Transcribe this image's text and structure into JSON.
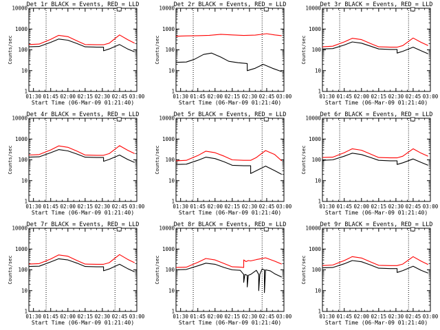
{
  "figure": {
    "background": "#ffffff",
    "colors": {
      "events": "#000000",
      "lld": "#ff0000",
      "axes": "#000000"
    },
    "legend_box_glyph": "small-square"
  },
  "chart_data": [
    {
      "type": "line",
      "title": "Det 1r BLACK = Events, RED = LLD",
      "xlabel": "Start Time (06-Mar-09 01:21:40)",
      "ylabel": "Counts/sec",
      "yscale": "log",
      "ylim": [
        1,
        10000
      ],
      "xtick_labels": [
        "01:30",
        "01:45",
        "02:00",
        "02:15",
        "02:30",
        "02:45",
        "03:00"
      ],
      "xlim": [
        "01:26",
        "03:00"
      ],
      "ytick_labels": [
        "1",
        "10",
        "100",
        "1000",
        "10000"
      ],
      "vlines": [
        "01:41",
        "02:41"
      ],
      "series": [
        {
          "name": "Events",
          "color": "#000000",
          "x": [
            "01:26",
            "01:35",
            "01:45",
            "01:52",
            "02:00",
            "02:08",
            "02:15",
            "02:25",
            "02:31",
            "02:31",
            "02:36",
            "02:45",
            "02:52",
            "02:58"
          ],
          "y": [
            140,
            145,
            230,
            330,
            290,
            200,
            140,
            135,
            135,
            90,
            110,
            180,
            110,
            80
          ]
        },
        {
          "name": "LLD",
          "color": "#ff0000",
          "x": [
            "01:26",
            "01:35",
            "01:45",
            "01:52",
            "02:00",
            "02:08",
            "02:15",
            "02:25",
            "02:31",
            "02:36",
            "02:45",
            "02:52",
            "02:58"
          ],
          "y": [
            180,
            190,
            320,
            500,
            430,
            270,
            180,
            175,
            175,
            210,
            520,
            310,
            210
          ]
        }
      ]
    },
    {
      "type": "line",
      "title": "Det 2r BLACK = Events, RED = LLD",
      "xlabel": "Start Time (06-Mar-09 01:21:40)",
      "ylabel": "Counts/sec",
      "yscale": "log",
      "ylim": [
        1,
        10000
      ],
      "xtick_labels": [
        "01:30",
        "01:45",
        "02:00",
        "02:15",
        "02:30",
        "02:45",
        "03:00"
      ],
      "xlim": [
        "01:26",
        "03:00"
      ],
      "ytick_labels": [
        "1",
        "10",
        "100",
        "1000",
        "10000"
      ],
      "vlines": [
        "01:41",
        "02:41"
      ],
      "series": [
        {
          "name": "Events",
          "color": "#000000",
          "x": [
            "01:26",
            "01:35",
            "01:42",
            "01:50",
            "01:57",
            "02:05",
            "02:12",
            "02:20",
            "02:28",
            "02:28",
            "02:35",
            "02:42",
            "02:50",
            "02:58"
          ],
          "y": [
            25,
            26,
            35,
            60,
            70,
            45,
            28,
            24,
            22,
            10,
            13,
            20,
            13,
            9
          ]
        },
        {
          "name": "LLD",
          "color": "#ff0000",
          "x": [
            "01:26",
            "01:35",
            "01:45",
            "01:55",
            "02:05",
            "02:15",
            "02:25",
            "02:35",
            "02:45",
            "02:52",
            "02:58"
          ],
          "y": [
            450,
            470,
            480,
            500,
            560,
            520,
            490,
            510,
            600,
            520,
            480
          ]
        }
      ]
    },
    {
      "type": "line",
      "title": "Det 3r BLACK = Events, RED = LLD",
      "xlabel": "Start Time (06-Mar-09 01:21:40)",
      "ylabel": "Counts/sec",
      "yscale": "log",
      "ylim": [
        1,
        10000
      ],
      "xtick_labels": [
        "01:30",
        "01:45",
        "02:00",
        "02:15",
        "02:30",
        "02:45",
        "03:00"
      ],
      "xlim": [
        "01:26",
        "03:00"
      ],
      "ytick_labels": [
        "1",
        "10",
        "100",
        "1000",
        "10000"
      ],
      "vlines": [
        "01:41",
        "02:41"
      ],
      "series": [
        {
          "name": "Events",
          "color": "#000000",
          "x": [
            "01:26",
            "01:35",
            "01:45",
            "01:52",
            "02:00",
            "02:08",
            "02:15",
            "02:25",
            "02:31",
            "02:31",
            "02:36",
            "02:45",
            "02:52",
            "02:58"
          ],
          "y": [
            110,
            115,
            170,
            240,
            210,
            150,
            110,
            105,
            105,
            70,
            85,
            135,
            90,
            65
          ]
        },
        {
          "name": "LLD",
          "color": "#ff0000",
          "x": [
            "01:26",
            "01:35",
            "01:45",
            "01:52",
            "02:00",
            "02:08",
            "02:15",
            "02:25",
            "02:31",
            "02:36",
            "02:45",
            "02:52",
            "02:58"
          ],
          "y": [
            140,
            150,
            240,
            360,
            310,
            200,
            140,
            135,
            135,
            160,
            370,
            230,
            160
          ]
        }
      ]
    },
    {
      "type": "line",
      "title": "Det 4r BLACK = Events, RED = LLD",
      "xlabel": "Start Time (06-Mar-09 01:21:40)",
      "ylabel": "Counts/sec",
      "yscale": "log",
      "ylim": [
        1,
        10000
      ],
      "xtick_labels": [
        "01:30",
        "01:45",
        "02:00",
        "02:15",
        "02:30",
        "02:45",
        "03:00"
      ],
      "xlim": [
        "01:26",
        "03:00"
      ],
      "ytick_labels": [
        "1",
        "10",
        "100",
        "1000",
        "10000"
      ],
      "vlines": [
        "01:41",
        "02:41"
      ],
      "series": [
        {
          "name": "Events",
          "color": "#000000",
          "x": [
            "01:26",
            "01:35",
            "01:45",
            "01:52",
            "02:00",
            "02:08",
            "02:15",
            "02:25",
            "02:31",
            "02:31",
            "02:36",
            "02:45",
            "02:52",
            "02:58"
          ],
          "y": [
            135,
            140,
            220,
            310,
            270,
            190,
            135,
            130,
            130,
            85,
            105,
            170,
            105,
            75
          ]
        },
        {
          "name": "LLD",
          "color": "#ff0000",
          "x": [
            "01:26",
            "01:35",
            "01:45",
            "01:52",
            "02:00",
            "02:08",
            "02:15",
            "02:25",
            "02:31",
            "02:36",
            "02:45",
            "02:52",
            "02:58"
          ],
          "y": [
            170,
            180,
            300,
            470,
            400,
            260,
            170,
            165,
            165,
            200,
            480,
            290,
            200
          ]
        }
      ]
    },
    {
      "type": "line",
      "title": "Det 5r BLACK = Events, RED = LLD",
      "xlabel": "Start Time (06-Mar-09 01:21:40)",
      "ylabel": "Counts/sec",
      "yscale": "log",
      "ylim": [
        1,
        10000
      ],
      "xtick_labels": [
        "01:30",
        "01:45",
        "02:00",
        "02:15",
        "02:30",
        "02:45",
        "03:00"
      ],
      "xlim": [
        "01:26",
        "03:00"
      ],
      "ytick_labels": [
        "1",
        "10",
        "100",
        "1000",
        "10000"
      ],
      "vlines": [
        "01:41",
        "02:41"
      ],
      "series": [
        {
          "name": "Events",
          "color": "#000000",
          "x": [
            "01:26",
            "01:35",
            "01:45",
            "01:52",
            "02:00",
            "02:08",
            "02:15",
            "02:25",
            "02:31",
            "02:31",
            "02:36",
            "02:44",
            "02:52",
            "02:58"
          ],
          "y": [
            60,
            62,
            95,
            135,
            115,
            80,
            55,
            52,
            52,
            22,
            30,
            50,
            30,
            20
          ]
        },
        {
          "name": "LLD",
          "color": "#ff0000",
          "x": [
            "01:26",
            "01:35",
            "01:45",
            "01:52",
            "02:00",
            "02:08",
            "02:15",
            "02:25",
            "02:31",
            "02:36",
            "02:44",
            "02:52",
            "02:58"
          ],
          "y": [
            90,
            95,
            160,
            260,
            220,
            150,
            100,
            95,
            95,
            130,
            280,
            180,
            90
          ]
        }
      ]
    },
    {
      "type": "line",
      "title": "Det 6r BLACK = Events, RED = LLD",
      "xlabel": "Start Time (06-Mar-09 01:21:40)",
      "ylabel": "Counts/sec",
      "yscale": "log",
      "ylim": [
        1,
        10000
      ],
      "xtick_labels": [
        "01:30",
        "01:45",
        "02:00",
        "02:15",
        "02:30",
        "02:45",
        "03:00"
      ],
      "xlim": [
        "01:26",
        "03:00"
      ],
      "ytick_labels": [
        "1",
        "10",
        "100",
        "1000",
        "10000"
      ],
      "vlines": [
        "01:41",
        "02:41"
      ],
      "series": [
        {
          "name": "Events",
          "color": "#000000",
          "x": [
            "01:26",
            "01:35",
            "01:45",
            "01:52",
            "02:00",
            "02:08",
            "02:15",
            "02:25",
            "02:31",
            "02:31",
            "02:36",
            "02:45",
            "02:52",
            "02:58"
          ],
          "y": [
            95,
            100,
            150,
            210,
            180,
            130,
            95,
            90,
            90,
            60,
            72,
            110,
            75,
            55
          ]
        },
        {
          "name": "LLD",
          "color": "#ff0000",
          "x": [
            "01:26",
            "01:35",
            "01:45",
            "01:52",
            "02:00",
            "02:08",
            "02:15",
            "02:25",
            "02:31",
            "02:36",
            "02:45",
            "02:52",
            "02:58"
          ],
          "y": [
            130,
            135,
            220,
            340,
            290,
            190,
            130,
            125,
            125,
            150,
            340,
            210,
            150
          ]
        }
      ]
    },
    {
      "type": "line",
      "title": "Det 7r BLACK = Events, RED = LLD",
      "xlabel": "Start Time (06-Mar-09 01:21:40)",
      "ylabel": "Counts/sec",
      "yscale": "log",
      "ylim": [
        1,
        10000
      ],
      "xtick_labels": [
        "01:30",
        "01:45",
        "02:00",
        "02:15",
        "02:30",
        "02:45",
        "03:00"
      ],
      "xlim": [
        "01:26",
        "03:00"
      ],
      "ytick_labels": [
        "1",
        "10",
        "100",
        "1000",
        "10000"
      ],
      "vlines": [
        "01:41",
        "02:41"
      ],
      "series": [
        {
          "name": "Events",
          "color": "#000000",
          "x": [
            "01:26",
            "01:35",
            "01:45",
            "01:52",
            "02:00",
            "02:08",
            "02:15",
            "02:25",
            "02:31",
            "02:31",
            "02:36",
            "02:45",
            "02:52",
            "02:58"
          ],
          "y": [
            145,
            150,
            240,
            340,
            300,
            210,
            145,
            140,
            140,
            90,
            110,
            185,
            115,
            80
          ]
        },
        {
          "name": "LLD",
          "color": "#ff0000",
          "x": [
            "01:26",
            "01:35",
            "01:45",
            "01:52",
            "02:00",
            "02:08",
            "02:15",
            "02:25",
            "02:31",
            "02:36",
            "02:45",
            "02:52",
            "02:58"
          ],
          "y": [
            190,
            200,
            330,
            520,
            450,
            280,
            190,
            185,
            185,
            220,
            540,
            320,
            220
          ]
        }
      ]
    },
    {
      "type": "line",
      "title": "Det 8r BLACK = Events, RED = LLD",
      "xlabel": "Start Time (06-Mar-09 01:21:40)",
      "ylabel": "Counts/sec",
      "yscale": "log",
      "ylim": [
        1,
        10000
      ],
      "xtick_labels": [
        "01:30",
        "01:45",
        "02:00",
        "02:15",
        "02:30",
        "02:45",
        "03:00"
      ],
      "xlim": [
        "01:26",
        "03:00"
      ],
      "ytick_labels": [
        "1",
        "10",
        "100",
        "1000",
        "10000"
      ],
      "vlines": [
        "01:41",
        "02:41"
      ],
      "series": [
        {
          "name": "Events",
          "color": "#000000",
          "x": [
            "01:26",
            "01:35",
            "01:45",
            "01:52",
            "02:00",
            "02:08",
            "02:15",
            "02:22",
            "02:25",
            "02:25",
            "02:26",
            "02:28",
            "02:28",
            "02:29",
            "02:31",
            "02:36",
            "02:38",
            "02:38",
            "02:39",
            "02:41",
            "02:43",
            "02:43",
            "02:44",
            "02:48",
            "02:52",
            "02:58"
          ],
          "y": [
            100,
            105,
            155,
            210,
            185,
            130,
            100,
            95,
            60,
            25,
            60,
            55,
            15,
            55,
            60,
            95,
            60,
            10,
            60,
            110,
            100,
            8,
            100,
            90,
            65,
            45
          ]
        },
        {
          "name": "LLD",
          "color": "#ff0000",
          "x": [
            "01:26",
            "01:35",
            "01:45",
            "01:52",
            "02:00",
            "02:08",
            "02:15",
            "02:22",
            "02:25",
            "02:25",
            "02:27",
            "02:29",
            "02:31",
            "02:36",
            "02:44",
            "02:52",
            "02:58"
          ],
          "y": [
            130,
            135,
            230,
            350,
            300,
            200,
            140,
            135,
            130,
            300,
            250,
            280,
            270,
            310,
            380,
            260,
            190
          ]
        }
      ]
    },
    {
      "type": "line",
      "title": "Det 9r BLACK = Events, RED = LLD",
      "xlabel": "Start Time (06-Mar-09 01:21:40)",
      "ylabel": "Counts/sec",
      "yscale": "log",
      "ylim": [
        1,
        10000
      ],
      "xtick_labels": [
        "01:30",
        "01:45",
        "02:00",
        "02:15",
        "02:30",
        "02:45",
        "03:00"
      ],
      "xlim": [
        "01:26",
        "03:00"
      ],
      "ytick_labels": [
        "1",
        "10",
        "100",
        "1000",
        "10000"
      ],
      "vlines": [
        "01:41",
        "02:41"
      ],
      "series": [
        {
          "name": "Events",
          "color": "#000000",
          "x": [
            "01:26",
            "01:35",
            "01:45",
            "01:52",
            "02:00",
            "02:08",
            "02:15",
            "02:25",
            "02:31",
            "02:31",
            "02:36",
            "02:45",
            "02:52",
            "02:58"
          ],
          "y": [
            125,
            130,
            195,
            280,
            245,
            170,
            120,
            115,
            115,
            75,
            92,
            150,
            95,
            70
          ]
        },
        {
          "name": "LLD",
          "color": "#ff0000",
          "x": [
            "01:26",
            "01:35",
            "01:45",
            "01:52",
            "02:00",
            "02:08",
            "02:15",
            "02:25",
            "02:31",
            "02:36",
            "02:45",
            "02:52",
            "02:58"
          ],
          "y": [
            160,
            170,
            280,
            430,
            370,
            240,
            165,
            160,
            160,
            190,
            430,
            260,
            180
          ]
        }
      ]
    }
  ]
}
